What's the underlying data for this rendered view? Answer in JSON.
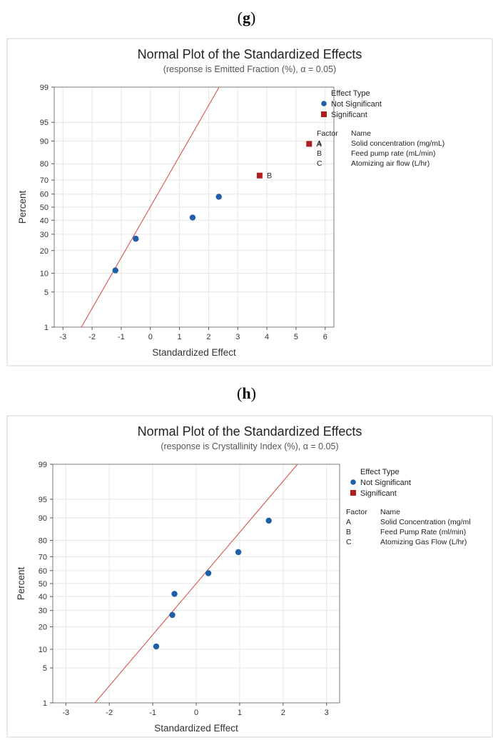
{
  "panels": [
    {
      "label_open": "(",
      "label_letter": "g",
      "label_close": ")",
      "chart_data": {
        "type": "scatter",
        "title": "Normal Plot of the Standardized Effects",
        "subtitle": "(response is Emitted Fraction (%), α = 0.05)",
        "xlabel": "Standardized Effect",
        "ylabel": "Percent",
        "xlim": [
          -3.3,
          6.3
        ],
        "xticks": [
          -3,
          -2,
          -1,
          0,
          1,
          2,
          3,
          4,
          5,
          6
        ],
        "yticks": [
          1,
          5,
          10,
          20,
          30,
          40,
          50,
          60,
          70,
          80,
          90,
          95,
          99
        ],
        "y_scale": "normal-probability",
        "grid": true,
        "legend": {
          "title": "Effect Type",
          "items": [
            {
              "label": "Not Significant",
              "color": "#1f5fa8",
              "marker": "circle"
            },
            {
              "label": "Significant",
              "color": "#b01e1e",
              "marker": "square"
            }
          ]
        },
        "factors": {
          "header_factor": "Factor",
          "header_name": "Name",
          "rows": [
            {
              "factor": "A",
              "name": "Solid concentration (mg/mL)"
            },
            {
              "factor": "B",
              "name": "Feed pump rate (mL/min)"
            },
            {
              "factor": "C",
              "name": "Atomizing air flow (L/hr)"
            }
          ]
        },
        "points": [
          {
            "x": -1.2,
            "y": 11,
            "significant": false,
            "label": ""
          },
          {
            "x": -0.5,
            "y": 27,
            "significant": false,
            "label": ""
          },
          {
            "x": 1.45,
            "y": 42,
            "significant": false,
            "label": ""
          },
          {
            "x": 2.35,
            "y": 58,
            "significant": false,
            "label": ""
          },
          {
            "x": 3.75,
            "y": 73,
            "significant": true,
            "label": "B"
          },
          {
            "x": 5.45,
            "y": 89,
            "significant": true,
            "label": "A"
          }
        ],
        "reference_line": {
          "x_at_p1": -2.37,
          "x_at_p99": 2.36,
          "color": "#d9534f"
        }
      }
    },
    {
      "label_open": "(",
      "label_letter": "h",
      "label_close": ")",
      "chart_data": {
        "type": "scatter",
        "title": "Normal Plot of the Standardized Effects",
        "subtitle": "(response is Crystallinity Index (%), α = 0.05)",
        "xlabel": "Standardized Effect",
        "ylabel": "Percent",
        "xlim": [
          -3.3,
          3.3
        ],
        "xticks": [
          -3,
          -2,
          -1,
          0,
          1,
          2,
          3
        ],
        "yticks": [
          1,
          5,
          10,
          20,
          30,
          40,
          50,
          60,
          70,
          80,
          90,
          95,
          99
        ],
        "y_scale": "normal-probability",
        "grid": true,
        "legend": {
          "title": "Effect Type",
          "items": [
            {
              "label": "Not Significant",
              "color": "#1f5fa8",
              "marker": "circle"
            },
            {
              "label": "Significant",
              "color": "#b01e1e",
              "marker": "square"
            }
          ]
        },
        "factors": {
          "header_factor": "Factor",
          "header_name": "Name",
          "rows": [
            {
              "factor": "A",
              "name": "Solid Concentration (mg/ml"
            },
            {
              "factor": "B",
              "name": "Feed Pump Rate (ml/min)"
            },
            {
              "factor": "C",
              "name": "Atomizing Gas Flow (L/hr)"
            }
          ]
        },
        "points": [
          {
            "x": -0.92,
            "y": 11,
            "significant": false,
            "label": ""
          },
          {
            "x": -0.55,
            "y": 27,
            "significant": false,
            "label": ""
          },
          {
            "x": -0.5,
            "y": 42,
            "significant": false,
            "label": ""
          },
          {
            "x": 0.28,
            "y": 58,
            "significant": false,
            "label": ""
          },
          {
            "x": 0.97,
            "y": 73,
            "significant": false,
            "label": ""
          },
          {
            "x": 1.67,
            "y": 89,
            "significant": false,
            "label": ""
          }
        ],
        "reference_line": {
          "x_at_p1": -2.33,
          "x_at_p99": 2.33,
          "color": "#d9534f"
        }
      }
    }
  ]
}
